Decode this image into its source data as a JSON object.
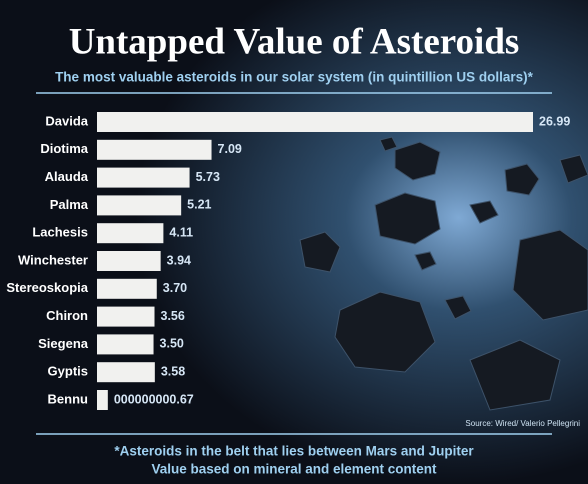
{
  "chart_data": {
    "type": "bar",
    "orientation": "horizontal",
    "title": "Untapped Value of Asteroids",
    "subtitle": "The most valuable asteroids in our solar system (in quintillion US dollars)*",
    "categories": [
      "Davida",
      "Diotima",
      "Alauda",
      "Palma",
      "Lachesis",
      "Winchester",
      "Stereoskopia",
      "Chiron",
      "Siegena",
      "Gyptis",
      "Bennu"
    ],
    "values": [
      26.99,
      7.09,
      5.73,
      5.21,
      4.11,
      3.94,
      3.7,
      3.56,
      3.5,
      3.58,
      0.67
    ],
    "value_labels": [
      "26.99",
      "7.09",
      "5.73",
      "5.21",
      "4.11",
      "3.94",
      "3.70",
      "3.56",
      "3.50",
      "3.58",
      "000000000.67"
    ],
    "color": "#f1f1ef",
    "source": "Source: Wired/ Valerio Pellegrini",
    "notes": [
      "*Asteroids in the belt that lies between Mars and Jupiter",
      "Value based on mineral and element content"
    ]
  }
}
